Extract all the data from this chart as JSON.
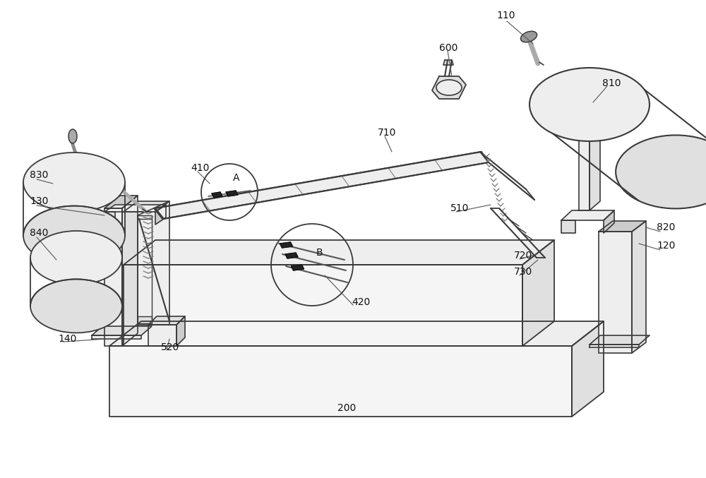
{
  "bg_color": "#ffffff",
  "lc": "#3a3a3a",
  "fill_lightest": "#f5f5f5",
  "fill_light": "#eeeeee",
  "fill_mid": "#e0e0e0",
  "fill_dark": "#cccccc",
  "fill_darker": "#b8b8b8",
  "figsize": [
    10.0,
    6.77
  ],
  "dpi": 100,
  "labels": [
    [
      "110",
      703,
      22,
      10
    ],
    [
      "600",
      622,
      68,
      10
    ],
    [
      "810",
      853,
      118,
      10
    ],
    [
      "820",
      930,
      322,
      10
    ],
    [
      "120",
      930,
      348,
      10
    ],
    [
      "710",
      535,
      188,
      10
    ],
    [
      "510",
      638,
      295,
      10
    ],
    [
      "720",
      728,
      362,
      10
    ],
    [
      "730",
      728,
      385,
      10
    ],
    [
      "410",
      270,
      238,
      10
    ],
    [
      "A",
      330,
      252,
      10
    ],
    [
      "B",
      448,
      358,
      10
    ],
    [
      "420",
      498,
      428,
      10
    ],
    [
      "520",
      228,
      492,
      10
    ],
    [
      "200",
      478,
      578,
      10
    ],
    [
      "830",
      42,
      248,
      10
    ],
    [
      "130",
      42,
      285,
      10
    ],
    [
      "840",
      42,
      330,
      10
    ],
    [
      "140",
      82,
      480,
      10
    ]
  ]
}
